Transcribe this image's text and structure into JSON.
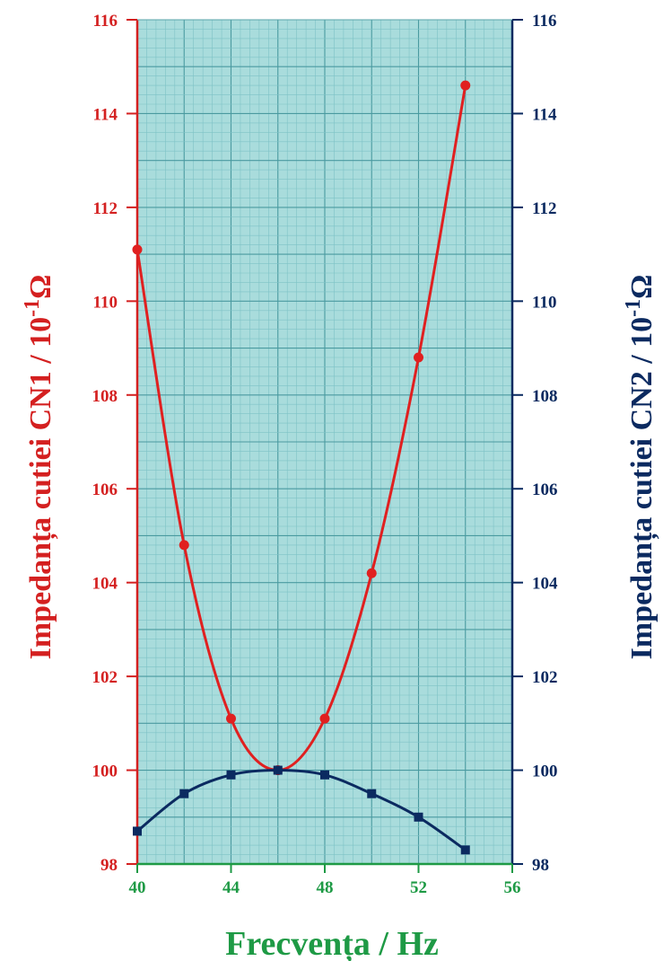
{
  "chart_data": {
    "type": "line",
    "x": [
      40,
      42,
      44,
      46,
      48,
      50,
      52,
      54
    ],
    "xlabel": "Frecvența / Hz",
    "xlim": [
      40,
      56
    ],
    "xticks": [
      "40",
      "44",
      "48",
      "52",
      "56"
    ],
    "ylabel_left": "Impedanța cutiei CN1 / 10",
    "ylabel_right": "Impedanța cutiei CN2 / 10",
    "ylabel_sup": "-1",
    "ylabel_unit": "Ω",
    "ylim": [
      98,
      116
    ],
    "yticks_left": [
      "98",
      "100",
      "102",
      "104",
      "106",
      "108",
      "110",
      "112",
      "114",
      "116"
    ],
    "yticks_right": [
      "98",
      "100",
      "102",
      "104",
      "106",
      "108",
      "110",
      "112",
      "114",
      "116"
    ],
    "grid": true,
    "series": [
      {
        "axis": "left",
        "color": "#e02020",
        "marker": "circle",
        "values": [
          111.1,
          104.8,
          101.1,
          100.0,
          101.1,
          104.2,
          108.8,
          114.6
        ]
      },
      {
        "axis": "right",
        "color": "#0b2a60",
        "marker": "square",
        "values": [
          98.7,
          99.5,
          99.9,
          100.0,
          99.9,
          99.5,
          99.0,
          98.3
        ]
      }
    ],
    "colors": {
      "left_axis": "#d42020",
      "right_axis": "#0b2a60",
      "x_axis": "#1e9a45",
      "plot_bg": "#a9dcdc",
      "grid_minor": "#7ec2c6",
      "grid_major": "#4a9aa0"
    }
  }
}
